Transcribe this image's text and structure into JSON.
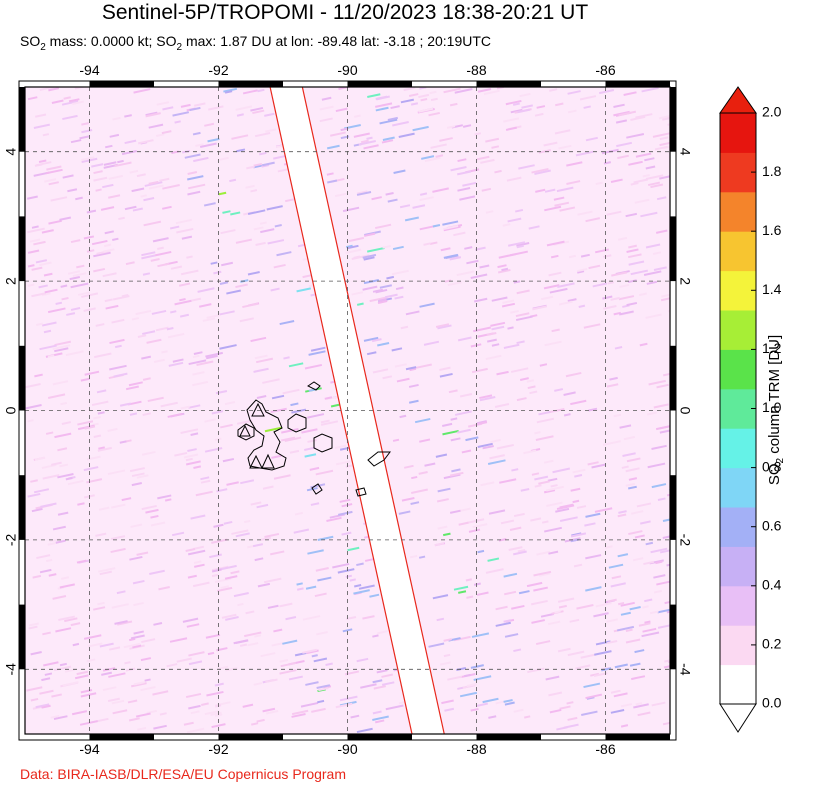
{
  "header": {
    "title": "Sentinel-5P/TROPOMI - 11/20/2023 18:38-20:21 UT",
    "subtitle_prefix": "SO",
    "subtitle_sub": "2",
    "subtitle_mid": " mass: 0.0000 kt; SO",
    "subtitle_sub2": "2",
    "subtitle_rest": " max: 1.87 DU at lon: -89.48 lat: -3.18 ; 20:19UTC"
  },
  "footer": {
    "credit": "Data: BIRA-IASB/DLR/ESA/EU Copernicus Program"
  },
  "map": {
    "lon_range": [
      -95,
      -85
    ],
    "lat_range": [
      -5,
      5
    ],
    "lon_ticks": [
      "-94",
      "-92",
      "-90",
      "-88",
      "-86"
    ],
    "lon_tick_values": [
      -94,
      -92,
      -90,
      -88,
      -86
    ],
    "lat_ticks": [
      "4",
      "2",
      "0",
      "-2",
      "-4"
    ],
    "lat_tick_values": [
      4,
      2,
      0,
      -2,
      -4
    ],
    "swath_gap_color": "#ffffff",
    "swath_edge_color": "#e8281c",
    "swath_gap": {
      "left_edge": {
        "top_lon": -91.2,
        "bottom_lon": -89.0
      },
      "right_edge": {
        "top_lon": -90.7,
        "bottom_lon": -88.5
      }
    },
    "features": {
      "islands": "Galapagos Islands"
    }
  },
  "colorbar": {
    "label_pre": "SO",
    "label_sub": "2",
    "label_post": " column TRM [DU]",
    "ticks": [
      "2.0",
      "1.8",
      "1.6",
      "1.4",
      "1.2",
      "1.0",
      "0.8",
      "0.6",
      "0.4",
      "0.2",
      "0.0"
    ],
    "tick_values": [
      2.0,
      1.8,
      1.6,
      1.4,
      1.2,
      1.0,
      0.8,
      0.6,
      0.4,
      0.2,
      0.0
    ],
    "range": [
      0.0,
      2.0
    ],
    "colors": [
      "#ffffff",
      "#fbd9f2",
      "#e8bff6",
      "#c7b0f5",
      "#a3b0f6",
      "#7fd6f6",
      "#65f2e7",
      "#5fea9a",
      "#5ae34a",
      "#a7ee36",
      "#f4f33a",
      "#f7c530",
      "#f4842b",
      "#ee3a20",
      "#e6150f"
    ],
    "over_color": "#e8200e",
    "under_color": "#ffffff"
  }
}
